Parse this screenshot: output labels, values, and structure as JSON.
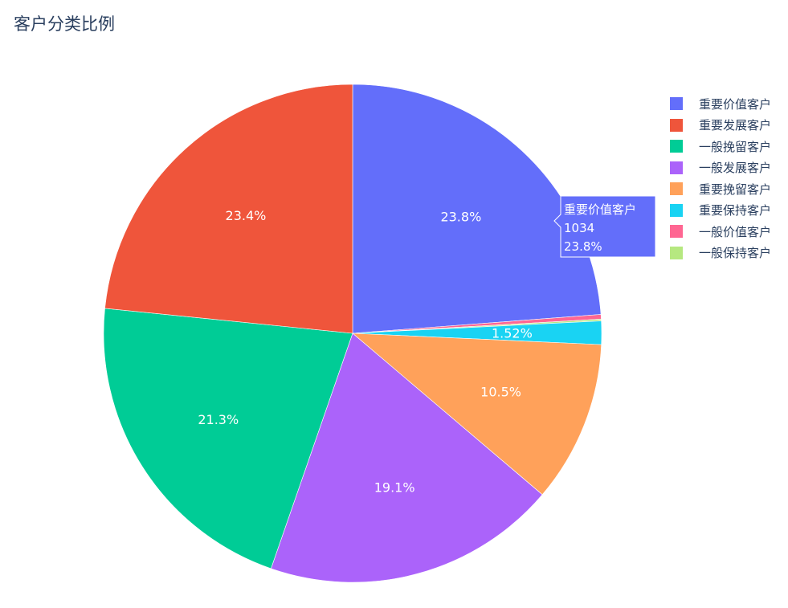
{
  "chart_data": {
    "type": "pie",
    "title": "客户分类比例",
    "direction": "clockwise",
    "start_angle": 90,
    "legend_placement": "right",
    "slices": [
      {
        "label": "重要价值客户",
        "value": 1034,
        "percent_label": "23.8%",
        "color": "#636efa"
      },
      {
        "label": "一般价值客户",
        "value": 13,
        "percent_label": "",
        "color": "#ff6692"
      },
      {
        "label": "一般保持客户",
        "value": 5,
        "percent_label": "",
        "color": "#b6e880"
      },
      {
        "label": "重要保持客户",
        "value": 66,
        "percent_label": "1.52%",
        "color": "#19d3f3"
      },
      {
        "label": "重要挽留客户",
        "value": 456,
        "percent_label": "10.5%",
        "color": "#ffa15a"
      },
      {
        "label": "一般发展客户",
        "value": 830,
        "percent_label": "19.1%",
        "color": "#ab63fa"
      },
      {
        "label": "一般挽留客户",
        "value": 925,
        "percent_label": "21.3%",
        "color": "#00cc96"
      },
      {
        "label": "重要发展客户",
        "value": 1017,
        "percent_label": "23.4%",
        "color": "#ef553b"
      }
    ],
    "legend": [
      {
        "label": "重要价值客户",
        "color": "#636efa"
      },
      {
        "label": "重要发展客户",
        "color": "#ef553b"
      },
      {
        "label": "一般挽留客户",
        "color": "#00cc96"
      },
      {
        "label": "一般发展客户",
        "color": "#ab63fa"
      },
      {
        "label": "重要挽留客户",
        "color": "#ffa15a"
      },
      {
        "label": "重要保持客户",
        "color": "#19d3f3"
      },
      {
        "label": "一般价值客户",
        "color": "#ff6692"
      },
      {
        "label": "一般保持客户",
        "color": "#b6e880"
      }
    ],
    "hover": {
      "label": "重要价值客户",
      "value": "1034",
      "percent": "23.8%",
      "color": "#636efa"
    }
  }
}
